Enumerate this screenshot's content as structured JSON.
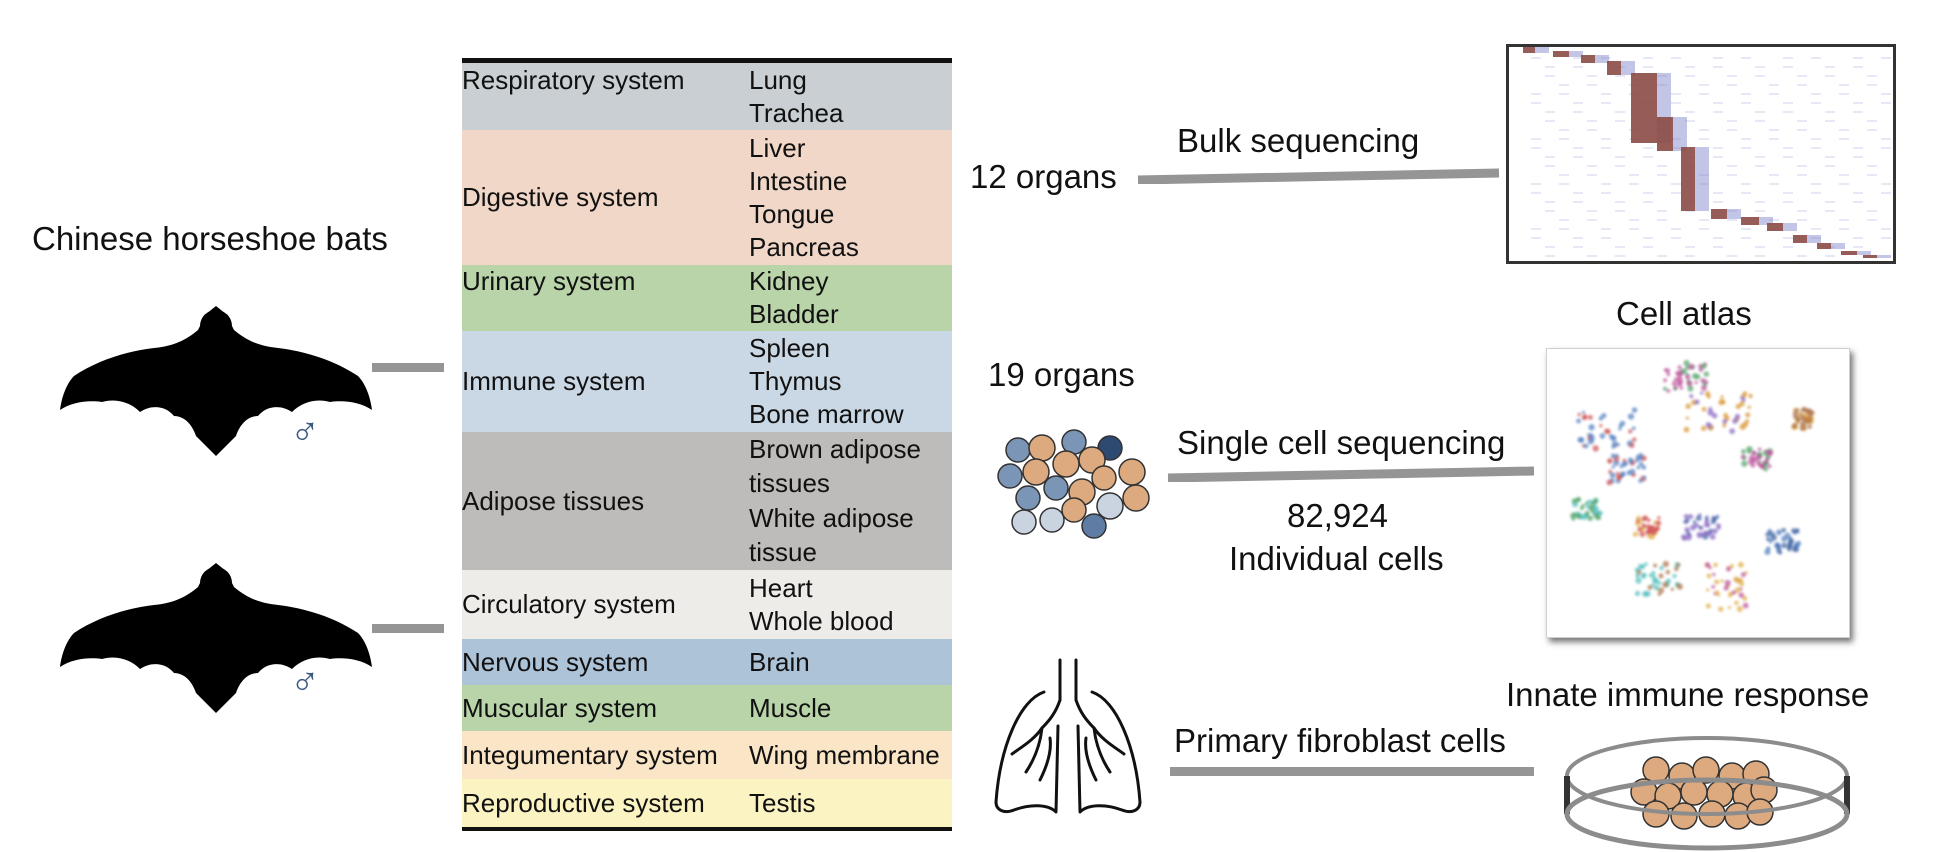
{
  "species": {
    "title": "Chinese horseshoe bats",
    "sex_symbol": "♂"
  },
  "colors": {
    "respiratory": "#c9cfd3",
    "digestive": "#f1d7c8",
    "urinary": "#b9d4a9",
    "immune": "#cad7e4",
    "adipose": "#bebcba",
    "circulatory": "#eeece9",
    "nervous": "#adc3d8",
    "muscular": "#b9d4a9",
    "integumentary": "#fbe5c7",
    "reproductive": "#fbf4c2",
    "connector": "#959595",
    "heat_high": "#8b4a45",
    "heat_mid": "#7b7fc8"
  },
  "table": {
    "groups": [
      {
        "system": "Respiratory system",
        "organs": [
          "Lung",
          "Trachea"
        ]
      },
      {
        "system": "Digestive system",
        "organs": [
          "Liver",
          "Intestine",
          "Tongue",
          "Pancreas"
        ]
      },
      {
        "system": "Urinary system",
        "organs": [
          "Kidney",
          "Bladder"
        ]
      },
      {
        "system": "Immune  system",
        "organs": [
          "Spleen",
          "Thymus",
          "Bone marrow"
        ]
      },
      {
        "system": "Adipose tissues",
        "organs": [
          "Brown adipose tissues",
          "White  adipose tissue"
        ]
      },
      {
        "system": "Circulatory system",
        "organs": [
          "Heart",
          "Whole blood"
        ]
      },
      {
        "system": "Nervous system",
        "organs": [
          "Brain"
        ]
      },
      {
        "system": "Muscular system",
        "organs": [
          "Muscle"
        ]
      },
      {
        "system": "Integumentary system",
        "organs": [
          "Wing membrane"
        ]
      },
      {
        "system": "Reproductive system",
        "organs": [
          "Testis"
        ]
      }
    ]
  },
  "bulk": {
    "count_label": "12 organs",
    "method_label": "Bulk sequencing"
  },
  "single_cell": {
    "count_label": "19 organs",
    "method_label": "Single cell sequencing",
    "cells_number": "82,924",
    "cells_label": "Individual  cells",
    "atlas_label": "Cell atlas"
  },
  "fibroblast": {
    "method_label": "Primary fibroblast cells",
    "result_label": "Innate immune response"
  }
}
